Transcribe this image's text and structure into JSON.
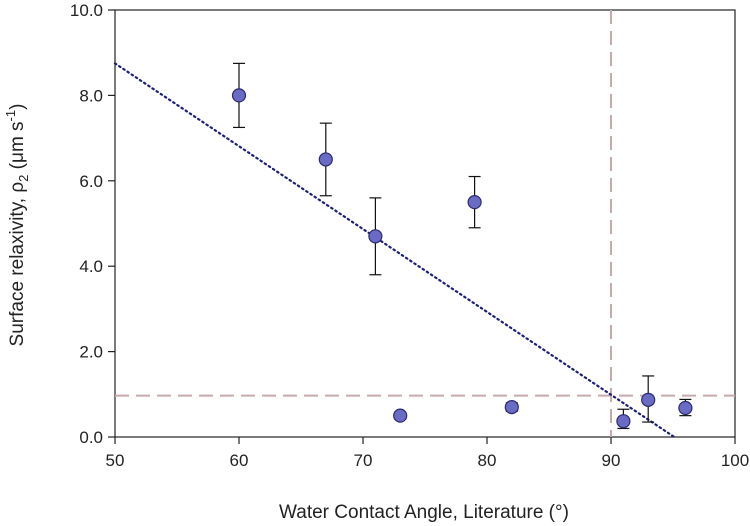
{
  "chart_data": {
    "type": "scatter",
    "xlabel": "Water Contact Angle, Literature (°)",
    "ylabel": {
      "prefix": "Surface relaxivity, ",
      "rho": "ρ",
      "rho_sub": "2",
      "unit_open": " (μm s",
      "unit_sup": "-1",
      "unit_close": ")"
    },
    "xlim": [
      50,
      100
    ],
    "ylim": [
      0,
      10
    ],
    "x_ticks": [
      50,
      60,
      70,
      80,
      90,
      100
    ],
    "x_tick_labels": [
      "50",
      "60",
      "70",
      "80",
      "90",
      "100"
    ],
    "y_ticks": [
      0,
      2,
      4,
      6,
      8,
      10
    ],
    "y_tick_labels": [
      "0.0",
      "2.0",
      "4.0",
      "6.0",
      "8.0",
      "10.0"
    ],
    "points": [
      {
        "x": 60,
        "y": 8.0,
        "err_low": 7.25,
        "err_high": 8.75
      },
      {
        "x": 67,
        "y": 6.5,
        "err_low": 5.65,
        "err_high": 7.35
      },
      {
        "x": 71,
        "y": 4.7,
        "err_low": 3.8,
        "err_high": 5.6
      },
      {
        "x": 73,
        "y": 0.5,
        "err_low": 0.42,
        "err_high": 0.58
      },
      {
        "x": 79,
        "y": 5.5,
        "err_low": 4.9,
        "err_high": 6.1
      },
      {
        "x": 82,
        "y": 0.7,
        "err_low": 0.6,
        "err_high": 0.8
      },
      {
        "x": 91,
        "y": 0.37,
        "err_low": 0.2,
        "err_high": 0.65
      },
      {
        "x": 93,
        "y": 0.87,
        "err_low": 0.35,
        "err_high": 1.43
      },
      {
        "x": 96,
        "y": 0.68,
        "err_low": 0.5,
        "err_high": 0.88
      }
    ],
    "trend_line": {
      "x_start": 50,
      "y_start": 8.75,
      "x_end": 95.1,
      "y_end": 0
    },
    "reference_lines": {
      "vertical_x": 90,
      "horizontal_y": 0.97
    },
    "colors": {
      "marker_fill": "#6a6bc4",
      "marker_stroke": "#2a2b6e",
      "trend": "#1c1f7a",
      "reference": "#c8a9ac",
      "axis": "#222222"
    }
  }
}
